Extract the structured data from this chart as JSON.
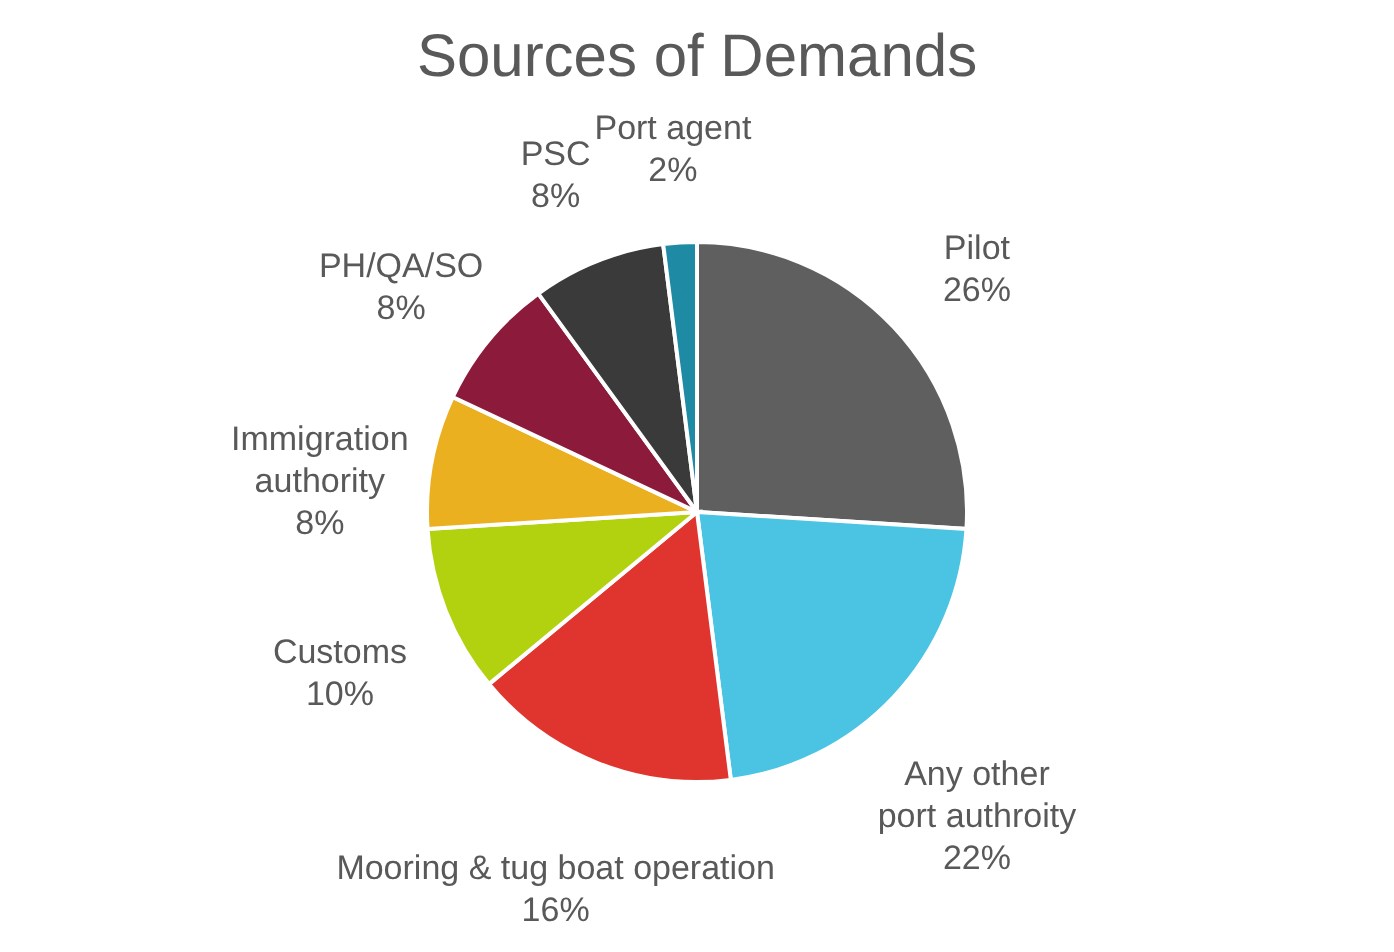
{
  "chart_data": {
    "type": "pie",
    "title": "Sources of Demands",
    "categories": [
      "Pilot",
      "Any other port authroity",
      "Mooring & tug boat operation",
      "Customs",
      "Immigration authority",
      "PH/QA/SO",
      "PSC",
      "Port agent"
    ],
    "values": [
      26,
      22,
      16,
      10,
      8,
      8,
      8,
      2
    ],
    "value_labels": [
      "26%",
      "22%",
      "16%",
      "10%",
      "8%",
      "8%",
      "8%",
      "2%"
    ],
    "colors": [
      "#5f5f5f",
      "#4bc4e3",
      "#e0352f",
      "#b2d10f",
      "#ebb020",
      "#8c1b3b",
      "#3a3a3a",
      "#1f8aa3"
    ]
  }
}
